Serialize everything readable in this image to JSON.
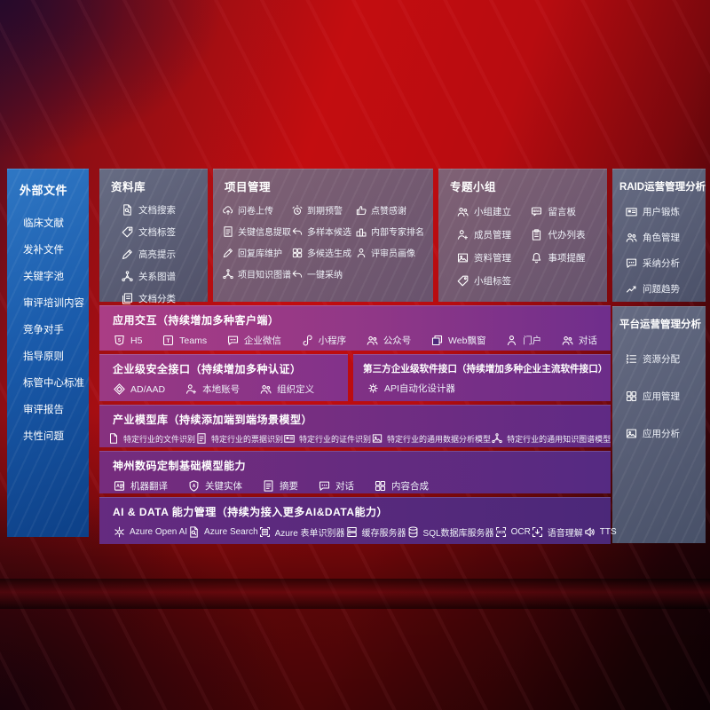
{
  "colors": {
    "background_red": "#c30d10",
    "sidebar_blue": "#1a5bab",
    "panel_slate": "#5c6780",
    "panel_mauve": "#736072",
    "row_purple_left": "#aa3d85",
    "row_purple_right": "#4b2879",
    "text": "#ffffff"
  },
  "sidebar": {
    "title": "外部文件",
    "items": [
      {
        "label": "临床文献"
      },
      {
        "label": "发补文件"
      },
      {
        "label": "关键字池"
      },
      {
        "label": "审评培训内容"
      },
      {
        "label": "竞争对手"
      },
      {
        "label": "指导原则"
      },
      {
        "label": "标管中心标准"
      },
      {
        "label": "审评报告"
      },
      {
        "label": "共性问题"
      }
    ]
  },
  "panels": {
    "library": {
      "title": "资料库",
      "items": [
        {
          "icon": "doc-search",
          "label": "文档搜索"
        },
        {
          "icon": "tag",
          "label": "文档标签"
        },
        {
          "icon": "pencil",
          "label": "高亮提示"
        },
        {
          "icon": "network",
          "label": "关系图谱"
        },
        {
          "icon": "docs",
          "label": "文档分类"
        }
      ]
    },
    "project": {
      "title": "项目管理",
      "items": [
        {
          "icon": "cloud-upload",
          "label": "问卷上传"
        },
        {
          "icon": "alarm",
          "label": "到期预警"
        },
        {
          "icon": "thumb-up",
          "label": "点赞感谢"
        },
        {
          "icon": "doc-lines",
          "label": "关键信息提取"
        },
        {
          "icon": "reply-arrow",
          "label": "多样本候选"
        },
        {
          "icon": "podium",
          "label": "内部专家排名"
        },
        {
          "icon": "pencil",
          "label": "回复库维护"
        },
        {
          "icon": "grid",
          "label": "多候选生成"
        },
        {
          "icon": "person",
          "label": "评审员画像"
        },
        {
          "icon": "network",
          "label": "项目知识图谱"
        },
        {
          "icon": "reply-arrow",
          "label": "一键采纳"
        }
      ]
    },
    "group": {
      "title": "专题小组",
      "items": [
        {
          "icon": "people",
          "label": "小组建立"
        },
        {
          "icon": "bbs",
          "label": "留言板"
        },
        {
          "icon": "person-plus",
          "label": "成员管理"
        },
        {
          "icon": "clipboard",
          "label": "代办列表"
        },
        {
          "icon": "image",
          "label": "资料管理"
        },
        {
          "icon": "bell",
          "label": "事项提醒"
        },
        {
          "icon": "tag",
          "label": "小组标签"
        }
      ]
    },
    "raid": {
      "title": "RAID运营管理分析",
      "items": [
        {
          "icon": "id-card",
          "label": "用户锻炼"
        },
        {
          "icon": "people",
          "label": "角色管理"
        },
        {
          "icon": "chat",
          "label": "采纳分析"
        },
        {
          "icon": "trend",
          "label": "问题趋势"
        }
      ]
    },
    "platform": {
      "title": "平台运营管理分析",
      "items": [
        {
          "icon": "list",
          "label": "资源分配"
        },
        {
          "icon": "grid",
          "label": "应用管理"
        },
        {
          "icon": "image",
          "label": "应用分析"
        }
      ]
    }
  },
  "rows": {
    "app": {
      "title": "应用交互（持续增加多种客户端）",
      "items": [
        {
          "icon": "h5",
          "label": "H5"
        },
        {
          "icon": "teams",
          "label": "Teams"
        },
        {
          "icon": "chat",
          "label": "企业微信"
        },
        {
          "icon": "scurve",
          "label": "小程序"
        },
        {
          "icon": "people",
          "label": "公众号"
        },
        {
          "icon": "window",
          "label": "Web飘窗"
        },
        {
          "icon": "person",
          "label": "门户"
        },
        {
          "icon": "people",
          "label": "对话"
        }
      ]
    },
    "security": {
      "title": "企业级安全接口（持续增加多种认证）",
      "items": [
        {
          "icon": "diamond",
          "label": "AD/AAD"
        },
        {
          "icon": "person-plus",
          "label": "本地账号"
        },
        {
          "icon": "people",
          "label": "组织定义"
        }
      ]
    },
    "third": {
      "title": "第三方企业级软件接口（持续增加多种企业主流软件接口）",
      "items": [
        {
          "icon": "gear",
          "label": "API自动化设计器"
        }
      ]
    },
    "industry": {
      "title": "产业模型库（持续添加端到端场景模型）",
      "items": [
        {
          "icon": "doc",
          "label": "特定行业的文件识别"
        },
        {
          "icon": "doc-lines",
          "label": "特定行业的票据识别"
        },
        {
          "icon": "id-card",
          "label": "特定行业的证件识别"
        },
        {
          "icon": "image",
          "label": "特定行业的通用数据分析模型"
        },
        {
          "icon": "network",
          "label": "特定行业的通用知识图谱模型"
        }
      ]
    },
    "base": {
      "title": "神州数码定制基础模型能力",
      "items": [
        {
          "icon": "translate",
          "label": "机器翻译"
        },
        {
          "icon": "shield-a",
          "label": "关键实体"
        },
        {
          "icon": "doc-lines",
          "label": "摘要"
        },
        {
          "icon": "chat",
          "label": "对话"
        },
        {
          "icon": "grid",
          "label": "内容合成"
        }
      ]
    },
    "aidata": {
      "title": "AI & DATA 能力管理（持续为接入更多AI&DATA能力）",
      "items": [
        {
          "icon": "swirl",
          "label": "Azure Open AI"
        },
        {
          "icon": "doc-search",
          "label": "Azure Search"
        },
        {
          "icon": "form",
          "label": "Azure 表单识别器"
        },
        {
          "icon": "server",
          "label": "缓存服务器"
        },
        {
          "icon": "db",
          "label": "SQL数据库服务器"
        },
        {
          "icon": "ocr",
          "label": "OCR"
        },
        {
          "icon": "voice",
          "label": "语音理解"
        },
        {
          "icon": "speaker",
          "label": "TTS"
        }
      ]
    }
  }
}
